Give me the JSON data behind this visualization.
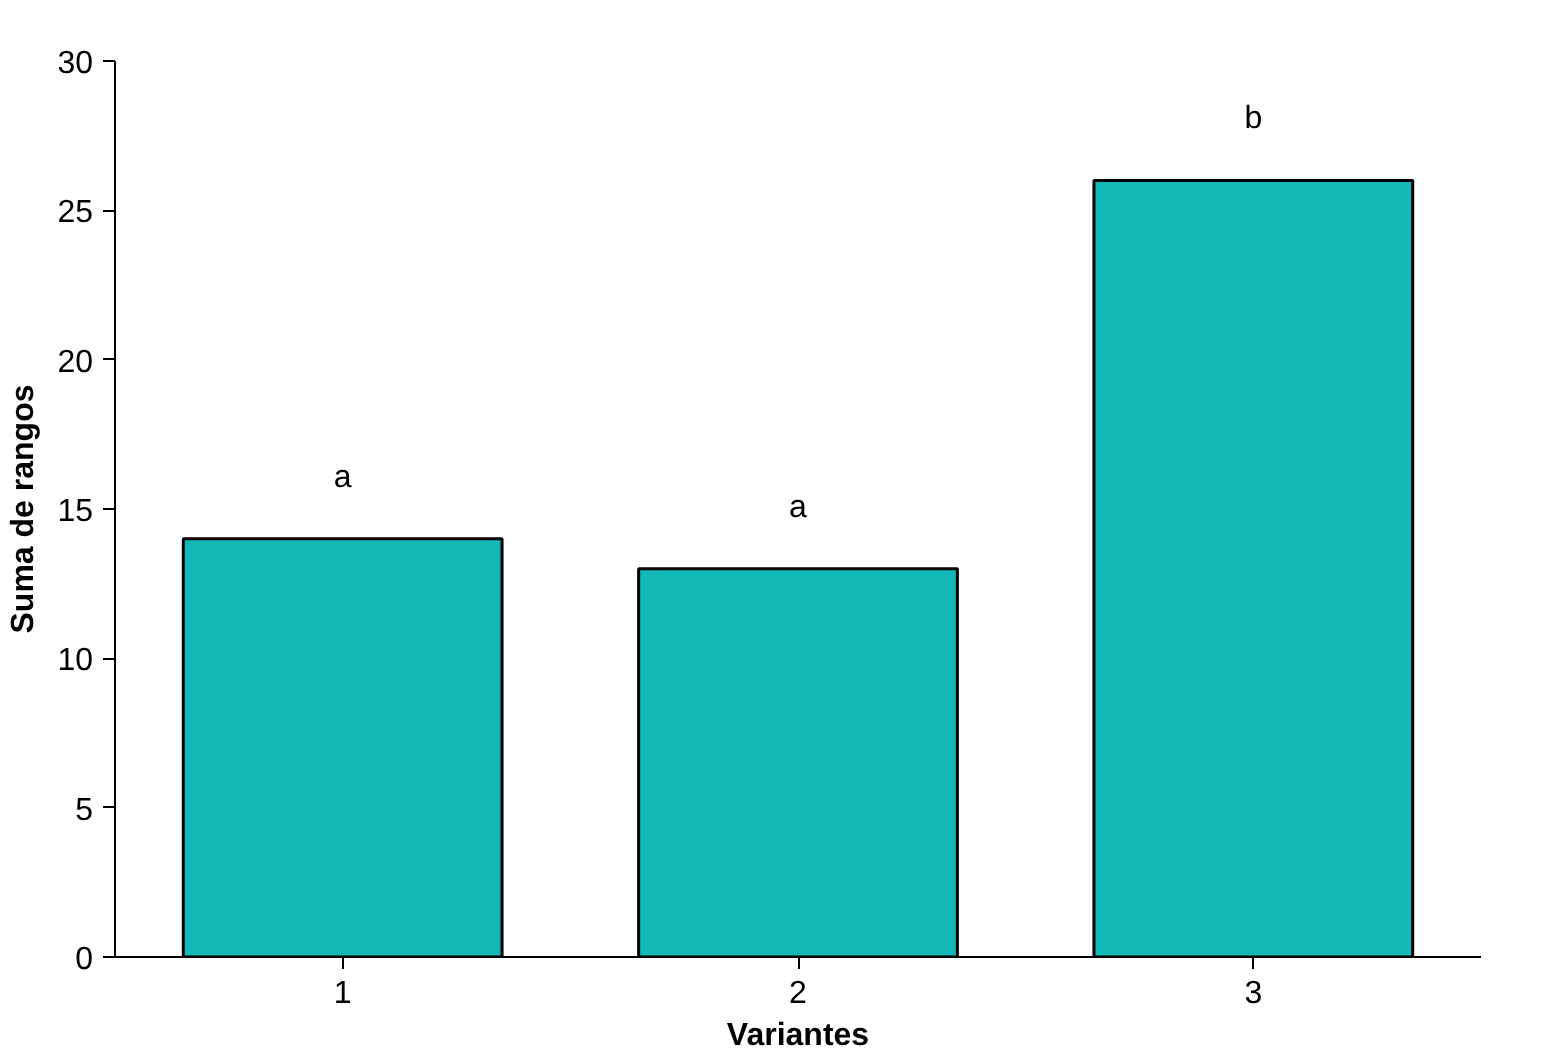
{
  "chart_data": {
    "type": "bar",
    "xlabel": "Variantes",
    "ylabel": "Suma de rangos",
    "categories": [
      "1",
      "2",
      "3"
    ],
    "values": [
      14,
      13,
      26
    ],
    "color": "#12b8b8",
    "ylim": [
      0,
      30
    ],
    "yticks": [
      0,
      5,
      10,
      15,
      20,
      25,
      30
    ],
    "grid": false,
    "annotations": [
      {
        "text": "a",
        "x": "1",
        "y": 14
      },
      {
        "text": "a",
        "x": "2",
        "y": 13
      },
      {
        "text": "b",
        "x": "3",
        "y": 26
      }
    ]
  }
}
